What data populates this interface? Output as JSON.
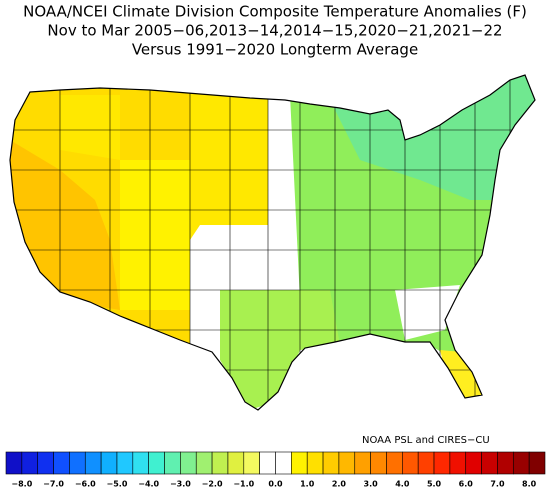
{
  "header": {
    "title": "NOAA/NCEI Climate Division Composite Temperature Anomalies (F)",
    "subtitle": "Nov to Mar  2005−06,2013−14,2014−15,2020−21,2021−22",
    "reference": "Versus 1991−2020 Longterm Average"
  },
  "credit": "NOAA PSL and CIRES−CU",
  "colorbar": {
    "labels": [
      "−8.0",
      "−7.0",
      "−6.0",
      "−5.0",
      "−4.0",
      "−3.0",
      "−2.0",
      "−1.0",
      "0.0",
      "1.0",
      "2.0",
      "3.0",
      "4.0",
      "5.0",
      "6.0",
      "7.0",
      "8.0"
    ],
    "colors": [
      "#1010c8",
      "#1020e0",
      "#1030f0",
      "#1050ff",
      "#1070ff",
      "#1090ff",
      "#10b0ff",
      "#20c8ff",
      "#30e0f0",
      "#40f0d0",
      "#60f0b0",
      "#80f090",
      "#a0f070",
      "#c0f050",
      "#e0f040",
      "#f4fa60",
      "#ffffff",
      "#ffffff",
      "#fff200",
      "#ffe000",
      "#ffcc00",
      "#ffb800",
      "#ffa000",
      "#ff8800",
      "#ff7000",
      "#ff5800",
      "#ff4000",
      "#ff2800",
      "#f01000",
      "#e00000",
      "#c80000",
      "#b00000",
      "#980000",
      "#800000"
    ]
  }
}
